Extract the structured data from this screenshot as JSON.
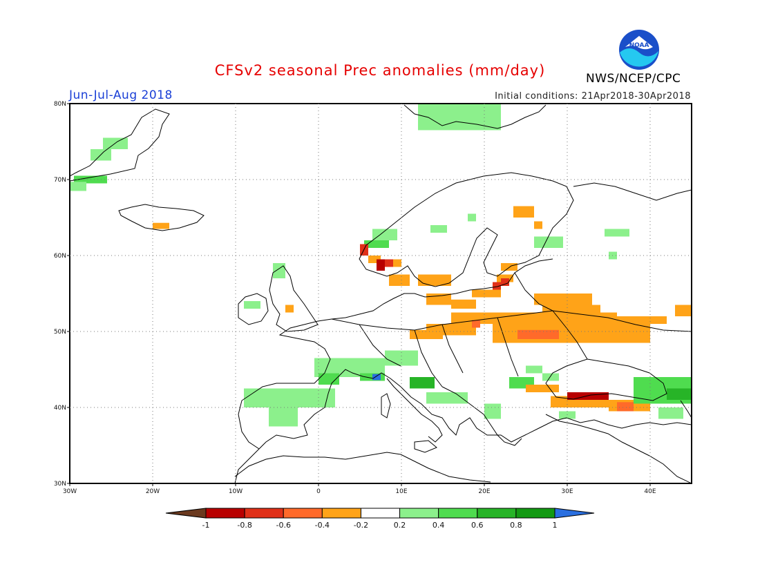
{
  "title": "CFSv2 seasonal Prec anomalies (mm/day)",
  "season": "Jun-Jul-Aug 2018",
  "initial_conditions": "Initial conditions: 21Apr2018-30Apr2018",
  "agency": "NWS/NCEP/CPC",
  "logo_text": "NOAA",
  "map": {
    "lon_range": [
      -30,
      45
    ],
    "lat_range": [
      30,
      80
    ],
    "lon_ticks": [
      {
        "v": -30,
        "label": "30W"
      },
      {
        "v": -20,
        "label": "20W"
      },
      {
        "v": -10,
        "label": "10W"
      },
      {
        "v": 0,
        "label": "0"
      },
      {
        "v": 10,
        "label": "10E"
      },
      {
        "v": 20,
        "label": "20E"
      },
      {
        "v": 30,
        "label": "30E"
      },
      {
        "v": 40,
        "label": "40E"
      }
    ],
    "lat_ticks": [
      {
        "v": 30,
        "label": "30N"
      },
      {
        "v": 40,
        "label": "40N"
      },
      {
        "v": 50,
        "label": "50N"
      },
      {
        "v": 60,
        "label": "60N"
      },
      {
        "v": 70,
        "label": "70N"
      },
      {
        "v": 80,
        "label": "80N"
      }
    ]
  },
  "colorbar": {
    "labels": [
      "-1",
      "-0.8",
      "-0.6",
      "-0.4",
      "-0.2",
      "0.2",
      "0.4",
      "0.6",
      "0.8",
      "1"
    ],
    "colors": [
      "#6b3a1f",
      "#b80000",
      "#e03018",
      "#ff6a2a",
      "#ffa318",
      "#ffffff",
      "#8cf08c",
      "#4fdc4f",
      "#27b427",
      "#139a13",
      "#2a6fe0"
    ]
  },
  "anomalies": [
    {
      "lon": -26,
      "lat": 74,
      "w": 3,
      "h": 1.5,
      "c": 6
    },
    {
      "lon": -27.5,
      "lat": 72.5,
      "w": 2.5,
      "h": 1.5,
      "c": 6
    },
    {
      "lon": -29.5,
      "lat": 69.5,
      "w": 4,
      "h": 1,
      "c": 7
    },
    {
      "lon": -30,
      "lat": 68.5,
      "w": 2,
      "h": 1.2,
      "c": 6
    },
    {
      "lon": -20,
      "lat": 63.5,
      "w": 2,
      "h": 0.8,
      "c": 4
    },
    {
      "lon": 12,
      "lat": 76.5,
      "w": 10,
      "h": 3.5,
      "c": 6
    },
    {
      "lon": 6.5,
      "lat": 62,
      "w": 3,
      "h": 1.5,
      "c": 6
    },
    {
      "lon": 5.5,
      "lat": 61,
      "w": 3,
      "h": 1,
      "c": 7
    },
    {
      "lon": 13.5,
      "lat": 63,
      "w": 2,
      "h": 1,
      "c": 6
    },
    {
      "lon": 18,
      "lat": 64.5,
      "w": 1,
      "h": 1,
      "c": 6
    },
    {
      "lon": 23.5,
      "lat": 65,
      "w": 2.5,
      "h": 1.5,
      "c": 4
    },
    {
      "lon": 26,
      "lat": 63.5,
      "w": 1,
      "h": 1,
      "c": 4
    },
    {
      "lon": 26,
      "lat": 61,
      "w": 3.5,
      "h": 1.5,
      "c": 6
    },
    {
      "lon": 34.5,
      "lat": 62.5,
      "w": 3,
      "h": 1,
      "c": 6
    },
    {
      "lon": 35,
      "lat": 59.5,
      "w": 1,
      "h": 1,
      "c": 6
    },
    {
      "lon": 5,
      "lat": 60,
      "w": 1,
      "h": 1.5,
      "c": 2
    },
    {
      "lon": 6,
      "lat": 59,
      "w": 1.5,
      "h": 1,
      "c": 4
    },
    {
      "lon": 7,
      "lat": 58,
      "w": 1,
      "h": 1.5,
      "c": 1
    },
    {
      "lon": 8,
      "lat": 58.5,
      "w": 1,
      "h": 1,
      "c": 2
    },
    {
      "lon": 9,
      "lat": 58.5,
      "w": 1,
      "h": 1,
      "c": 4
    },
    {
      "lon": 8.5,
      "lat": 56,
      "w": 2.5,
      "h": 1.5,
      "c": 4
    },
    {
      "lon": 12,
      "lat": 56,
      "w": 1.5,
      "h": 1.5,
      "c": 4
    },
    {
      "lon": 13,
      "lat": 56,
      "w": 3,
      "h": 1.5,
      "c": 4
    },
    {
      "lon": 22,
      "lat": 58,
      "w": 2,
      "h": 1,
      "c": 4
    },
    {
      "lon": 21.5,
      "lat": 56.5,
      "w": 2,
      "h": 1,
      "c": 4
    },
    {
      "lon": 22,
      "lat": 56,
      "w": 1,
      "h": 1,
      "c": 2
    },
    {
      "lon": 21,
      "lat": 55.5,
      "w": 1,
      "h": 1,
      "c": 2
    },
    {
      "lon": 18.5,
      "lat": 54.5,
      "w": 3.5,
      "h": 1,
      "c": 4
    },
    {
      "lon": 13,
      "lat": 53.5,
      "w": 3,
      "h": 1.5,
      "c": 4
    },
    {
      "lon": 16,
      "lat": 53,
      "w": 3,
      "h": 1.2,
      "c": 4
    },
    {
      "lon": 26,
      "lat": 53.5,
      "w": 7,
      "h": 1.5,
      "c": 4
    },
    {
      "lon": 27,
      "lat": 52,
      "w": 7,
      "h": 1.5,
      "c": 4
    },
    {
      "lon": 16,
      "lat": 51,
      "w": 20,
      "h": 1.5,
      "c": 4
    },
    {
      "lon": 13,
      "lat": 49.5,
      "w": 6,
      "h": 1.5,
      "c": 4
    },
    {
      "lon": 11,
      "lat": 49,
      "w": 4,
      "h": 1.2,
      "c": 4
    },
    {
      "lon": 21,
      "lat": 48.5,
      "w": 19,
      "h": 2.5,
      "c": 4
    },
    {
      "lon": 24,
      "lat": 49,
      "w": 5,
      "h": 1.2,
      "c": 3
    },
    {
      "lon": 18.5,
      "lat": 50.5,
      "w": 1,
      "h": 1,
      "c": 3
    },
    {
      "lon": 36,
      "lat": 51,
      "w": 6,
      "h": 1,
      "c": 4
    },
    {
      "lon": 43,
      "lat": 52,
      "w": 2,
      "h": 1.5,
      "c": 4
    },
    {
      "lon": -4,
      "lat": 52.5,
      "w": 1,
      "h": 1,
      "c": 4
    },
    {
      "lon": -9,
      "lat": 53,
      "w": 2,
      "h": 1,
      "c": 6
    },
    {
      "lon": -5.5,
      "lat": 57,
      "w": 1.5,
      "h": 2,
      "c": 6
    },
    {
      "lon": -0.5,
      "lat": 44,
      "w": 8.5,
      "h": 2.5,
      "c": 6
    },
    {
      "lon": 5,
      "lat": 43.5,
      "w": 3,
      "h": 1,
      "c": 7
    },
    {
      "lon": 6.5,
      "lat": 43.6,
      "w": 1,
      "h": 0.8,
      "c": 10
    },
    {
      "lon": 8,
      "lat": 45.5,
      "w": 4,
      "h": 2,
      "c": 6
    },
    {
      "lon": 11,
      "lat": 42.5,
      "w": 3,
      "h": 1.5,
      "c": 8
    },
    {
      "lon": 13,
      "lat": 40.5,
      "w": 5,
      "h": 1.5,
      "c": 6
    },
    {
      "lon": 0,
      "lat": 43,
      "w": 2.5,
      "h": 1.5,
      "c": 7
    },
    {
      "lon": -9,
      "lat": 40,
      "w": 11,
      "h": 2.5,
      "c": 6
    },
    {
      "lon": -6,
      "lat": 37.5,
      "w": 3.5,
      "h": 2.5,
      "c": 6
    },
    {
      "lon": 20,
      "lat": 38.5,
      "w": 2,
      "h": 2,
      "c": 6
    },
    {
      "lon": 23,
      "lat": 42.5,
      "w": 3,
      "h": 1.5,
      "c": 7
    },
    {
      "lon": 25,
      "lat": 44.5,
      "w": 2,
      "h": 1,
      "c": 6
    },
    {
      "lon": 27,
      "lat": 43.5,
      "w": 2,
      "h": 1,
      "c": 6
    },
    {
      "lon": 25,
      "lat": 42,
      "w": 4,
      "h": 1,
      "c": 4
    },
    {
      "lon": 28,
      "lat": 40,
      "w": 7,
      "h": 1.5,
      "c": 4
    },
    {
      "lon": 30,
      "lat": 41,
      "w": 5,
      "h": 1,
      "c": 1
    },
    {
      "lon": 35,
      "lat": 39.5,
      "w": 5,
      "h": 1.5,
      "c": 4
    },
    {
      "lon": 36,
      "lat": 39.5,
      "w": 2,
      "h": 1.2,
      "c": 3
    },
    {
      "lon": 29,
      "lat": 38.5,
      "w": 2,
      "h": 1,
      "c": 6
    },
    {
      "lon": 38,
      "lat": 40.5,
      "w": 7,
      "h": 3.5,
      "c": 7
    },
    {
      "lon": 42,
      "lat": 41,
      "w": 3,
      "h": 1.5,
      "c": 8
    },
    {
      "lon": 41,
      "lat": 38.5,
      "w": 3,
      "h": 1.5,
      "c": 6
    }
  ]
}
